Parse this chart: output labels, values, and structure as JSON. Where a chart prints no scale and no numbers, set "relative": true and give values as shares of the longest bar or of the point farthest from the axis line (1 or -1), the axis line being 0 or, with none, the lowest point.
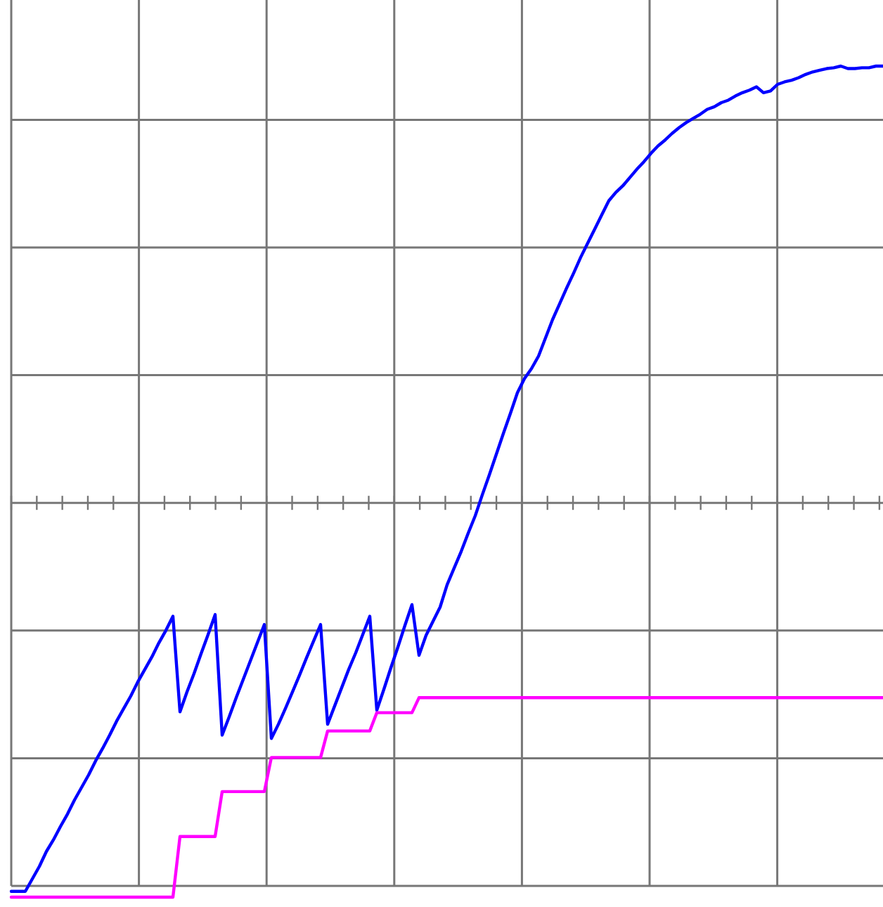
{
  "chart_data": {
    "type": "line",
    "relative": true,
    "grid": true,
    "categories": [
      null,
      null,
      null,
      null,
      null,
      null,
      null,
      null,
      null,
      null,
      null,
      null,
      null,
      null,
      null,
      null,
      null,
      null,
      null,
      null,
      null,
      null,
      null,
      null,
      null,
      null,
      null,
      null,
      null,
      null,
      null,
      null,
      null,
      null,
      null,
      null,
      null,
      null,
      null,
      null,
      null,
      null,
      null,
      null,
      null,
      null,
      null,
      null,
      null,
      null,
      null,
      null,
      null,
      null,
      null,
      null,
      null,
      null,
      null,
      null,
      null,
      null,
      null,
      null,
      null,
      null,
      null,
      null,
      null,
      null,
      null,
      null,
      null,
      null,
      null,
      null,
      null,
      null,
      null,
      null,
      null,
      null,
      null,
      null,
      null,
      null,
      null,
      null,
      null,
      null,
      null,
      null,
      null,
      null,
      null,
      null,
      null,
      null,
      null,
      null,
      null,
      null,
      null,
      null,
      null,
      null,
      null,
      null,
      null,
      null,
      null,
      null,
      null,
      null,
      null,
      null,
      null,
      null,
      null,
      null,
      null,
      null,
      null,
      null,
      null
    ],
    "series": [
      {
        "color": "#0000ff",
        "values": [
          0.007,
          0.007,
          0.007,
          0.022,
          0.037,
          0.055,
          0.069,
          0.085,
          0.1,
          0.117,
          0.132,
          0.147,
          0.164,
          0.179,
          0.195,
          0.212,
          0.227,
          0.242,
          0.259,
          0.274,
          0.289,
          0.306,
          0.321,
          0.338,
          0.223,
          0.247,
          0.269,
          0.293,
          0.316,
          0.34,
          0.195,
          0.217,
          0.24,
          0.262,
          0.284,
          0.306,
          0.328,
          0.191,
          0.208,
          0.227,
          0.247,
          0.267,
          0.288,
          0.308,
          0.328,
          0.208,
          0.23,
          0.252,
          0.274,
          0.294,
          0.316,
          0.338,
          0.225,
          0.25,
          0.276,
          0.301,
          0.327,
          0.352,
          0.291,
          0.315,
          0.332,
          0.349,
          0.376,
          0.396,
          0.416,
          0.438,
          0.459,
          0.484,
          0.508,
          0.533,
          0.558,
          0.582,
          0.607,
          0.624,
          0.636,
          0.651,
          0.673,
          0.695,
          0.714,
          0.733,
          0.751,
          0.77,
          0.787,
          0.804,
          0.821,
          0.838,
          0.848,
          0.856,
          0.866,
          0.876,
          0.885,
          0.895,
          0.904,
          0.911,
          0.919,
          0.926,
          0.932,
          0.937,
          0.942,
          0.948,
          0.951,
          0.956,
          0.959,
          0.964,
          0.968,
          0.971,
          0.975,
          0.968,
          0.97,
          0.978,
          0.981,
          0.983,
          0.986,
          0.99,
          0.993,
          0.995,
          0.997,
          0.998,
          1,
          0.997,
          0.997,
          0.998,
          0.998,
          1,
          1
        ]
      },
      {
        "color": "#ff00ff",
        "values": [
          0,
          0,
          0,
          0,
          0,
          0,
          0,
          0,
          0,
          0,
          0,
          0,
          0,
          0,
          0,
          0,
          0,
          0,
          0,
          0,
          0,
          0,
          0,
          0,
          0.073,
          0.073,
          0.073,
          0.073,
          0.073,
          0.073,
          0.127,
          0.127,
          0.127,
          0.127,
          0.127,
          0.127,
          0.127,
          0.168,
          0.168,
          0.168,
          0.168,
          0.168,
          0.168,
          0.168,
          0.168,
          0.2,
          0.2,
          0.2,
          0.2,
          0.2,
          0.2,
          0.2,
          0.222,
          0.222,
          0.222,
          0.222,
          0.222,
          0.222,
          0.24,
          0.24,
          0.24,
          0.24,
          0.24,
          0.24,
          0.24,
          0.24,
          0.24,
          0.24,
          0.24,
          0.24,
          0.24,
          0.24,
          0.24,
          0.24,
          0.24,
          0.24,
          0.24,
          0.24,
          0.24,
          0.24,
          0.24,
          0.24,
          0.24,
          0.24,
          0.24,
          0.24,
          0.24,
          0.24,
          0.24,
          0.24,
          0.24,
          0.24,
          0.24,
          0.24,
          0.24,
          0.24,
          0.24,
          0.24,
          0.24,
          0.24,
          0.24,
          0.24,
          0.24,
          0.24,
          0.24,
          0.24,
          0.24,
          0.24,
          0.24,
          0.24,
          0.24,
          0.24,
          0.24,
          0.24,
          0.24,
          0.24,
          0.24,
          0.24,
          0.24,
          0.24,
          0.24,
          0.24,
          0.24,
          0.24,
          0.24
        ]
      }
    ]
  }
}
